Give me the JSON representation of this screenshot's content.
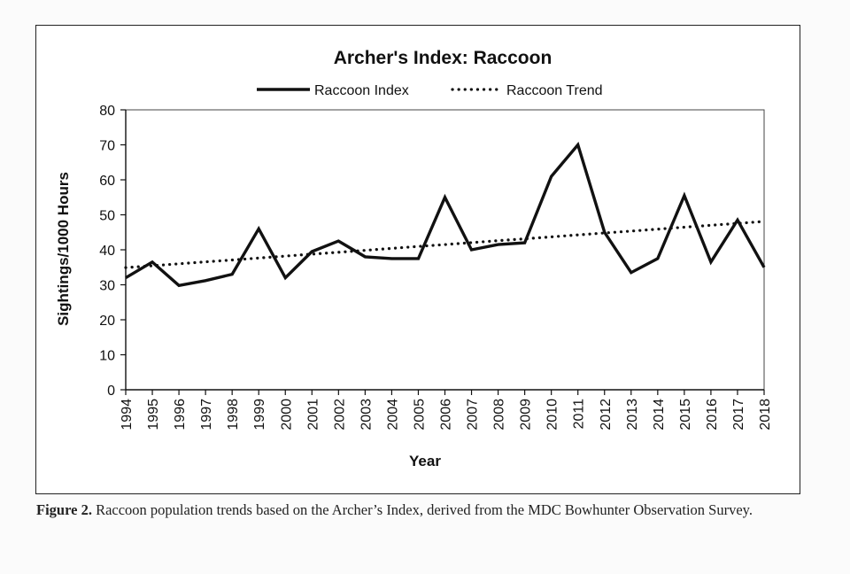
{
  "chart_data": {
    "type": "line",
    "title": "Archer's Index: Raccoon",
    "xlabel": "Year",
    "ylabel": "Sightings/1000 Hours",
    "ylim": [
      0,
      80
    ],
    "yticks": [
      0,
      10,
      20,
      30,
      40,
      50,
      60,
      70,
      80
    ],
    "x": [
      1994,
      1995,
      1996,
      1997,
      1998,
      1999,
      2000,
      2001,
      2002,
      2003,
      2004,
      2005,
      2006,
      2007,
      2008,
      2009,
      2010,
      2011,
      2012,
      2013,
      2014,
      2015,
      2016,
      2017,
      2018
    ],
    "series": [
      {
        "name": "Raccoon Index",
        "style": "solid",
        "color": "#111111",
        "values": [
          32,
          36.5,
          29.8,
          31.2,
          33,
          46,
          32,
          39.5,
          42.5,
          38,
          37.5,
          37.5,
          55,
          40,
          41.5,
          42,
          61,
          70,
          45,
          33.5,
          37.5,
          55.5,
          36.5,
          48.5,
          35
        ]
      },
      {
        "name": "Raccoon Trend",
        "style": "dotted",
        "color": "#111111",
        "values": [
          34.9,
          35.45,
          36.0,
          36.55,
          37.1,
          37.65,
          38.2,
          38.75,
          39.3,
          39.85,
          40.4,
          40.95,
          41.5,
          42.05,
          42.6,
          43.15,
          43.7,
          44.25,
          44.8,
          45.35,
          45.9,
          46.45,
          47.0,
          47.55,
          48.1
        ]
      }
    ],
    "legend_position": "top-center",
    "grid": false
  },
  "caption": {
    "label": "Figure 2.",
    "text": " Raccoon population trends based on the Archer’s Index, derived from the MDC Bowhunter Observation Survey."
  }
}
